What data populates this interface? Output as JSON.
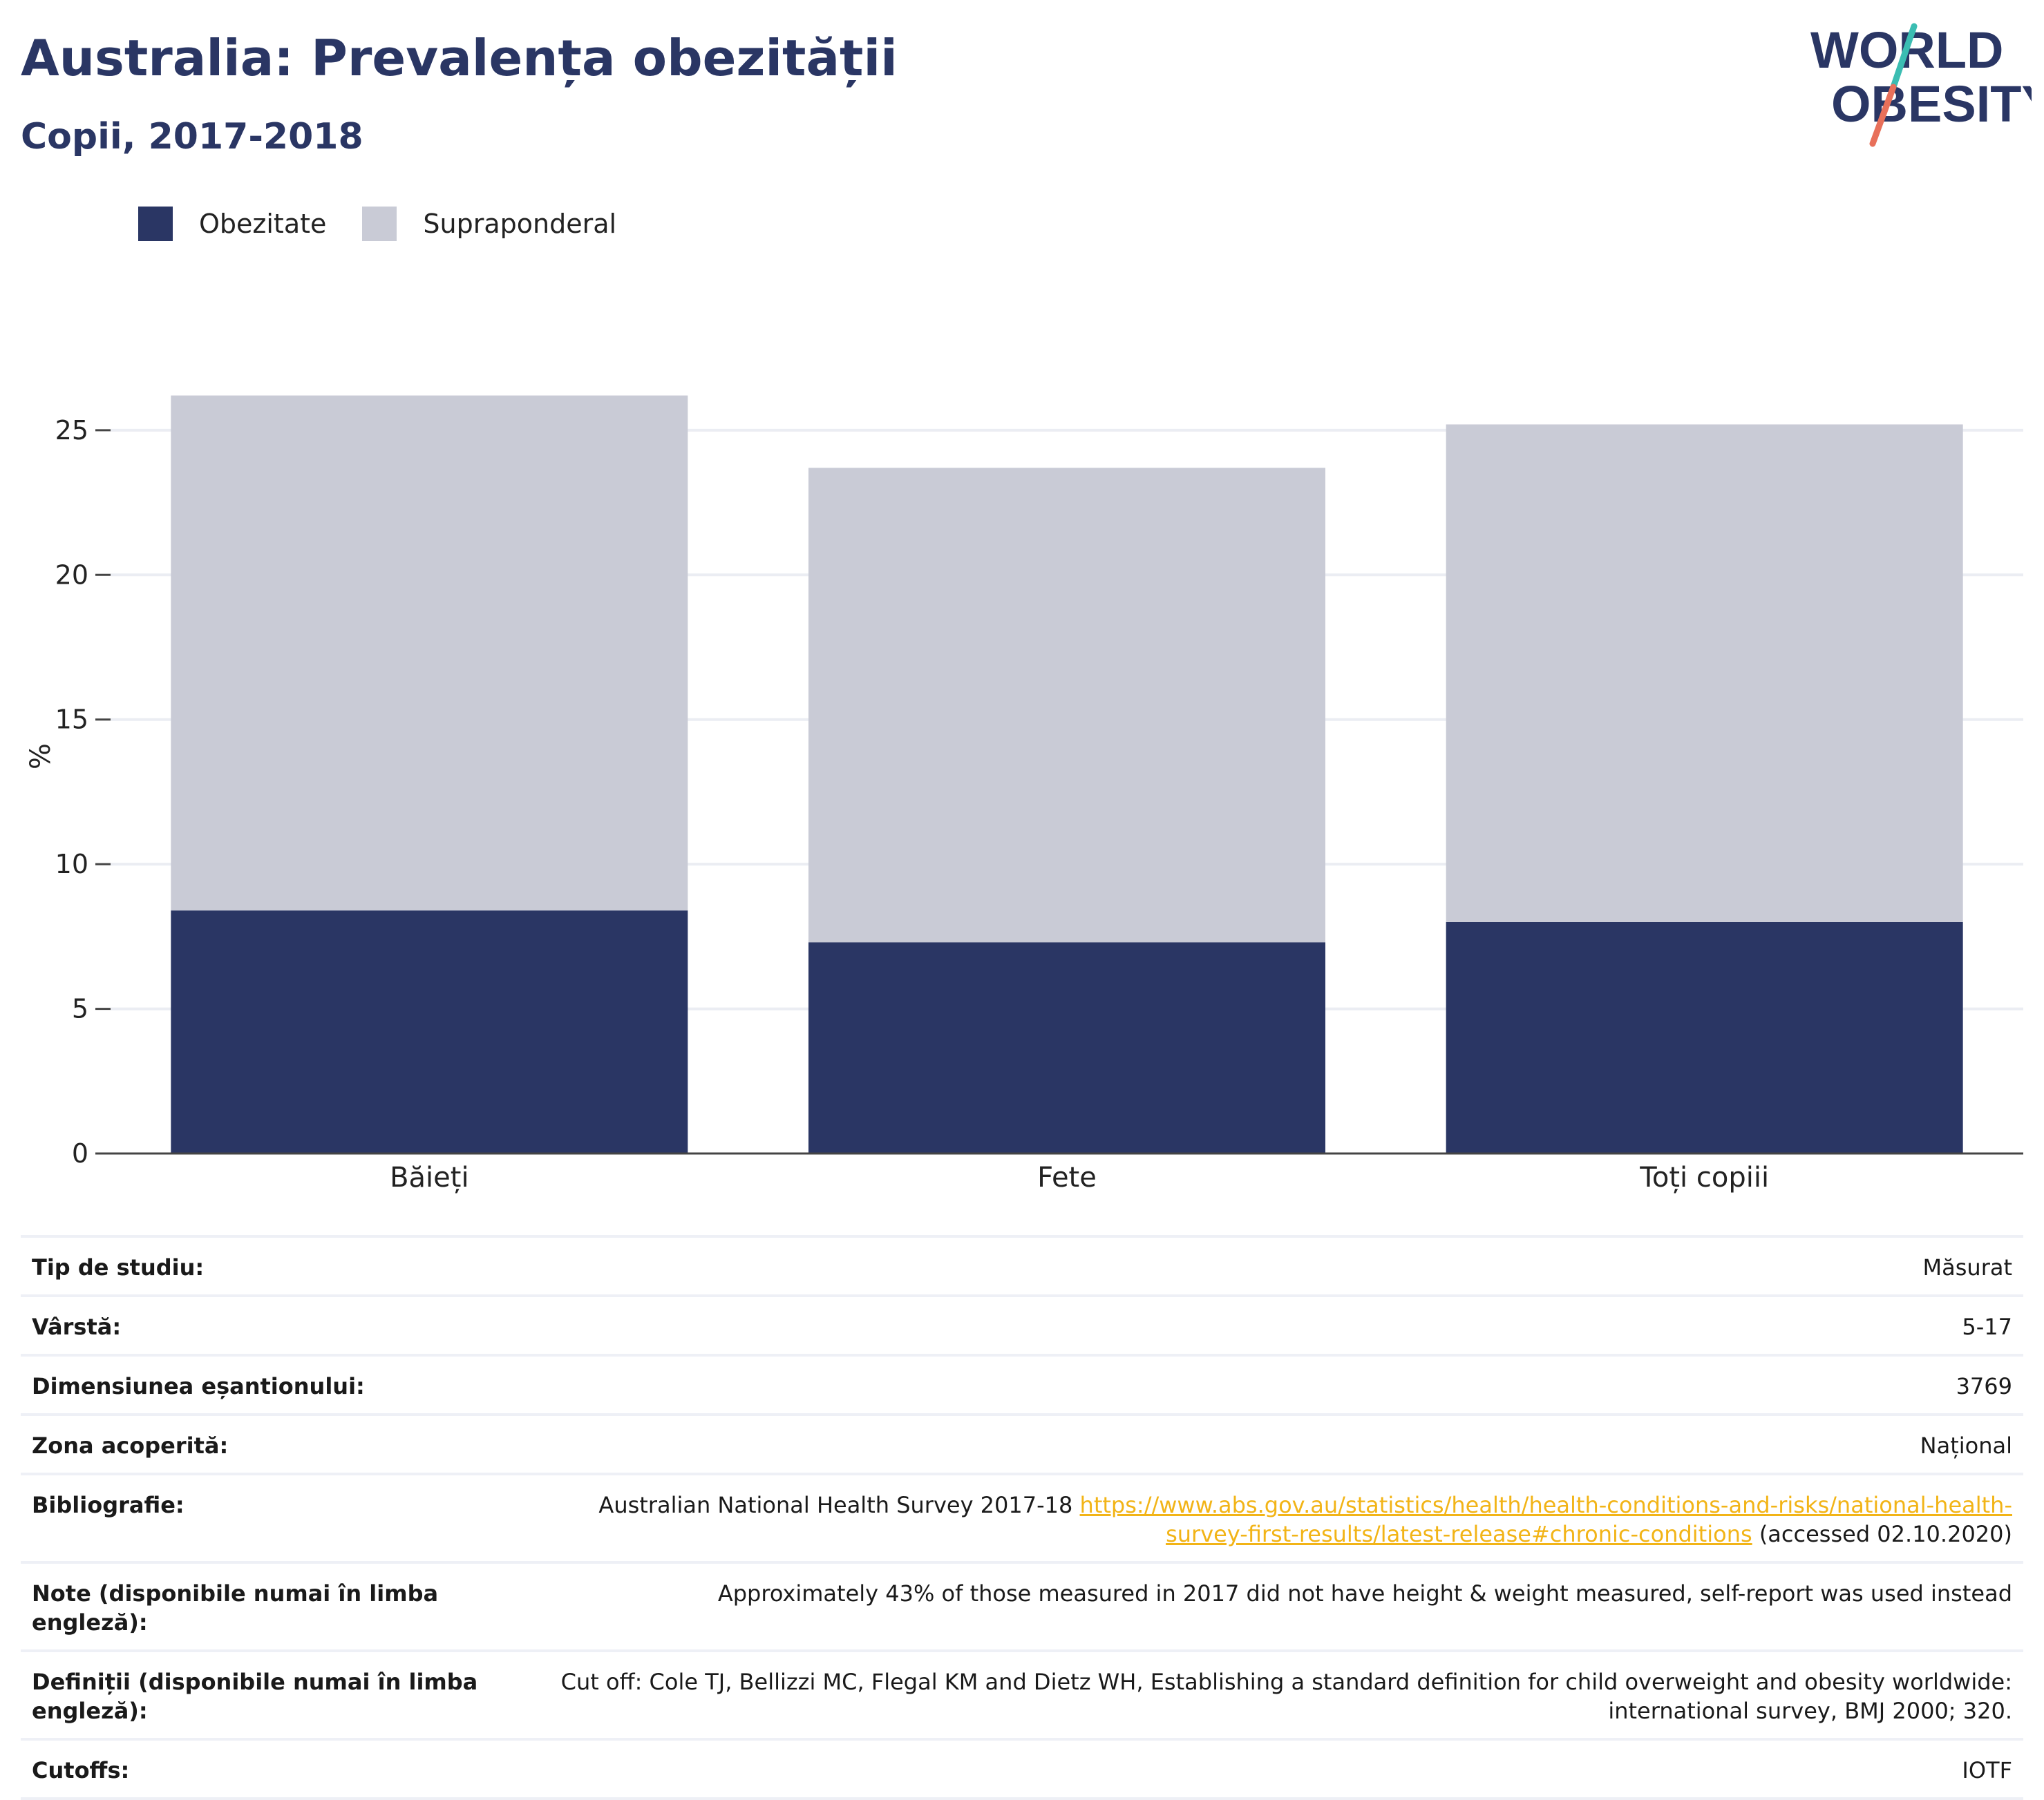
{
  "header": {
    "title": "Australia: Prevalența obezității",
    "subtitle": "Copii, 2017-2018"
  },
  "logo": {
    "line1": "WORLD",
    "line2": "OBESITY"
  },
  "colors": {
    "obesity": "#2a3664",
    "overweight": "#c9cbd6",
    "title": "#2a3664",
    "link": "#f2b417",
    "logo_teal": "#3bbdb2",
    "logo_coral": "#e8705a"
  },
  "chart_data": {
    "type": "bar",
    "stacked": true,
    "categories": [
      "Băieți",
      "Fete",
      "Toți copiii"
    ],
    "series": [
      {
        "name": "Obezitate",
        "values": [
          8.4,
          7.3,
          8.0
        ]
      },
      {
        "name": "Supraponderal",
        "values": [
          17.8,
          16.4,
          17.2
        ]
      }
    ],
    "ylabel": "%",
    "ylim": [
      0,
      26.5
    ],
    "yticks": [
      0,
      5,
      10,
      15,
      20,
      25
    ],
    "grid": true,
    "legend": "top-left"
  },
  "info": [
    {
      "label": "Tip de studiu:",
      "value": "Măsurat"
    },
    {
      "label": "Vârstă:",
      "value": "5-17"
    },
    {
      "label": "Dimensiunea eșantionului:",
      "value": "3769"
    },
    {
      "label": "Zona acoperită:",
      "value": "Național"
    },
    {
      "label": "Bibliografie:",
      "value": "Australian National Health Survey 2017-18",
      "link": "https://www.abs.gov.au/statistics/health/health-conditions-and-risks/national-health-survey-first-results/latest-release#chronic-conditions",
      "suffix": "(accessed 02.10.2020)"
    },
    {
      "label": "Note (disponibile numai în limba engleză):",
      "value": "Approximately 43% of those measured in 2017 did not have height & weight measured, self-report was used instead"
    },
    {
      "label": "Definiții (disponibile numai în limba engleză):",
      "value": "Cut off: Cole TJ, Bellizzi MC, Flegal KM and Dietz WH, Establishing a standard definition for child overweight and obesity worldwide: international survey, BMJ 2000; 320."
    },
    {
      "label": "Cutoffs:",
      "value": "IOTF"
    }
  ]
}
